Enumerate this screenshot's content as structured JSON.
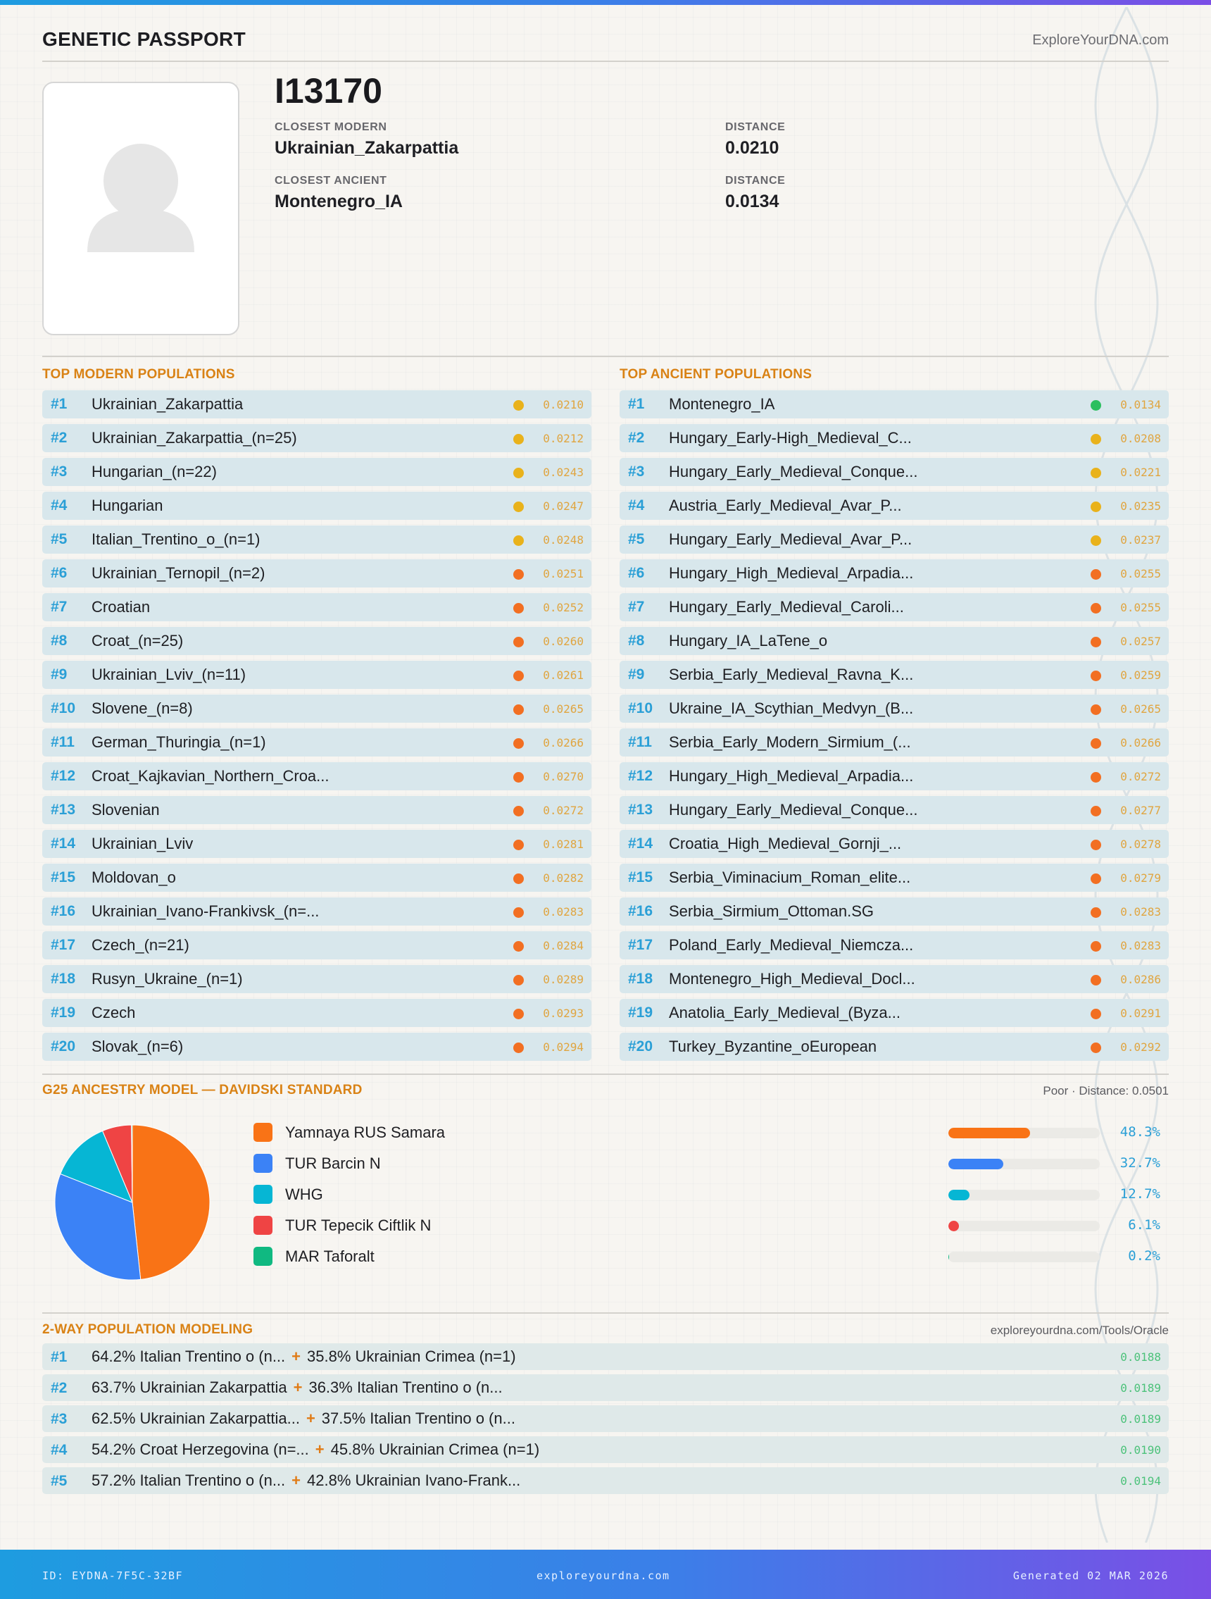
{
  "header": {
    "title": "GENETIC PASSPORT",
    "site": "ExploreYourDNA.com"
  },
  "profile": {
    "photo_icon": "avatar-placeholder-icon",
    "sample_id": "I13170",
    "closest_modern_label": "CLOSEST MODERN",
    "closest_modern": "Ukrainian_Zakarpattia",
    "modern_distance_label": "DISTANCE",
    "modern_distance": "0.0210",
    "closest_ancient_label": "CLOSEST ANCIENT",
    "closest_ancient": "Montenegro_IA",
    "ancient_distance_label": "DISTANCE",
    "ancient_distance": "0.0134"
  },
  "colors": {
    "green": "#2bbf5f",
    "yellow": "#e9b21b",
    "orange": "#f26f22"
  },
  "modern": {
    "title": "TOP MODERN POPULATIONS",
    "items": [
      {
        "rank": "#1",
        "name": "Ukrainian_Zakarpattia",
        "distance": "0.0210",
        "dot": "#e9b21b"
      },
      {
        "rank": "#2",
        "name": "Ukrainian_Zakarpattia_(n=25)",
        "distance": "0.0212",
        "dot": "#e9b21b"
      },
      {
        "rank": "#3",
        "name": "Hungarian_(n=22)",
        "distance": "0.0243",
        "dot": "#e9b21b"
      },
      {
        "rank": "#4",
        "name": "Hungarian",
        "distance": "0.0247",
        "dot": "#e9b21b"
      },
      {
        "rank": "#5",
        "name": "Italian_Trentino_o_(n=1)",
        "distance": "0.0248",
        "dot": "#e9b21b"
      },
      {
        "rank": "#6",
        "name": "Ukrainian_Ternopil_(n=2)",
        "distance": "0.0251",
        "dot": "#f26f22"
      },
      {
        "rank": "#7",
        "name": "Croatian",
        "distance": "0.0252",
        "dot": "#f26f22"
      },
      {
        "rank": "#8",
        "name": "Croat_(n=25)",
        "distance": "0.0260",
        "dot": "#f26f22"
      },
      {
        "rank": "#9",
        "name": "Ukrainian_Lviv_(n=11)",
        "distance": "0.0261",
        "dot": "#f26f22"
      },
      {
        "rank": "#10",
        "name": "Slovene_(n=8)",
        "distance": "0.0265",
        "dot": "#f26f22"
      },
      {
        "rank": "#11",
        "name": "German_Thuringia_(n=1)",
        "distance": "0.0266",
        "dot": "#f26f22"
      },
      {
        "rank": "#12",
        "name": "Croat_Kajkavian_Northern_Croa...",
        "distance": "0.0270",
        "dot": "#f26f22"
      },
      {
        "rank": "#13",
        "name": "Slovenian",
        "distance": "0.0272",
        "dot": "#f26f22"
      },
      {
        "rank": "#14",
        "name": "Ukrainian_Lviv",
        "distance": "0.0281",
        "dot": "#f26f22"
      },
      {
        "rank": "#15",
        "name": "Moldovan_o",
        "distance": "0.0282",
        "dot": "#f26f22"
      },
      {
        "rank": "#16",
        "name": "Ukrainian_Ivano-Frankivsk_(n=...",
        "distance": "0.0283",
        "dot": "#f26f22"
      },
      {
        "rank": "#17",
        "name": "Czech_(n=21)",
        "distance": "0.0284",
        "dot": "#f26f22"
      },
      {
        "rank": "#18",
        "name": "Rusyn_Ukraine_(n=1)",
        "distance": "0.0289",
        "dot": "#f26f22"
      },
      {
        "rank": "#19",
        "name": "Czech",
        "distance": "0.0293",
        "dot": "#f26f22"
      },
      {
        "rank": "#20",
        "name": "Slovak_(n=6)",
        "distance": "0.0294",
        "dot": "#f26f22"
      }
    ]
  },
  "ancient": {
    "title": "TOP ANCIENT POPULATIONS",
    "items": [
      {
        "rank": "#1",
        "name": "Montenegro_IA",
        "distance": "0.0134",
        "dot": "#2bbf5f"
      },
      {
        "rank": "#2",
        "name": "Hungary_Early-High_Medieval_C...",
        "distance": "0.0208",
        "dot": "#e9b21b"
      },
      {
        "rank": "#3",
        "name": "Hungary_Early_Medieval_Conque...",
        "distance": "0.0221",
        "dot": "#e9b21b"
      },
      {
        "rank": "#4",
        "name": "Austria_Early_Medieval_Avar_P...",
        "distance": "0.0235",
        "dot": "#e9b21b"
      },
      {
        "rank": "#5",
        "name": "Hungary_Early_Medieval_Avar_P...",
        "distance": "0.0237",
        "dot": "#e9b21b"
      },
      {
        "rank": "#6",
        "name": "Hungary_High_Medieval_Arpadia...",
        "distance": "0.0255",
        "dot": "#f26f22"
      },
      {
        "rank": "#7",
        "name": "Hungary_Early_Medieval_Caroli...",
        "distance": "0.0255",
        "dot": "#f26f22"
      },
      {
        "rank": "#8",
        "name": "Hungary_IA_LaTene_o",
        "distance": "0.0257",
        "dot": "#f26f22"
      },
      {
        "rank": "#9",
        "name": "Serbia_Early_Medieval_Ravna_K...",
        "distance": "0.0259",
        "dot": "#f26f22"
      },
      {
        "rank": "#10",
        "name": "Ukraine_IA_Scythian_Medvyn_(B...",
        "distance": "0.0265",
        "dot": "#f26f22"
      },
      {
        "rank": "#11",
        "name": "Serbia_Early_Modern_Sirmium_(...",
        "distance": "0.0266",
        "dot": "#f26f22"
      },
      {
        "rank": "#12",
        "name": "Hungary_High_Medieval_Arpadia...",
        "distance": "0.0272",
        "dot": "#f26f22"
      },
      {
        "rank": "#13",
        "name": "Hungary_Early_Medieval_Conque...",
        "distance": "0.0277",
        "dot": "#f26f22"
      },
      {
        "rank": "#14",
        "name": "Croatia_High_Medieval_Gornji_...",
        "distance": "0.0278",
        "dot": "#f26f22"
      },
      {
        "rank": "#15",
        "name": "Serbia_Viminacium_Roman_elite...",
        "distance": "0.0279",
        "dot": "#f26f22"
      },
      {
        "rank": "#16",
        "name": "Serbia_Sirmium_Ottoman.SG",
        "distance": "0.0283",
        "dot": "#f26f22"
      },
      {
        "rank": "#17",
        "name": "Poland_Early_Medieval_Niemcza...",
        "distance": "0.0283",
        "dot": "#f26f22"
      },
      {
        "rank": "#18",
        "name": "Montenegro_High_Medieval_Docl...",
        "distance": "0.0286",
        "dot": "#f26f22"
      },
      {
        "rank": "#19",
        "name": "Anatolia_Early_Medieval_(Byza...",
        "distance": "0.0291",
        "dot": "#f26f22"
      },
      {
        "rank": "#20",
        "name": "Turkey_Byzantine_oEuropean",
        "distance": "0.0292",
        "dot": "#f26f22"
      }
    ]
  },
  "ancestry": {
    "title": "G25 ANCESTRY MODEL — DAVIDSKI STANDARD",
    "fit": "Poor · Distance: 0.0501"
  },
  "chart_data": {
    "type": "pie",
    "title": "",
    "legend": "right",
    "labels": [
      "Yamnaya RUS Samara",
      "TUR Barcin N",
      "WHG",
      "TUR Tepecik Ciftlik N",
      "MAR Taforalt"
    ],
    "values": [
      48.3,
      32.7,
      12.7,
      6.1,
      0.2
    ],
    "value_labels": [
      "48.3%",
      "32.7%",
      "12.7%",
      "6.1%",
      "0.2%"
    ],
    "colors": [
      "#f97316",
      "#3b82f6",
      "#06b6d4",
      "#ef4444",
      "#10b981"
    ]
  },
  "twoway": {
    "title": "2-WAY POPULATION MODELING",
    "link": "exploreyourdna.com/Tools/Oracle",
    "plus": "+",
    "items": [
      {
        "rank": "#1",
        "a": "64.2% Italian Trentino o (n...",
        "b": "35.8% Ukrainian Crimea (n=1)",
        "distance": "0.0188"
      },
      {
        "rank": "#2",
        "a": "63.7% Ukrainian Zakarpattia",
        "b": "36.3% Italian Trentino o (n...",
        "distance": "0.0189"
      },
      {
        "rank": "#3",
        "a": "62.5% Ukrainian Zakarpattia...",
        "b": "37.5% Italian Trentino o (n...",
        "distance": "0.0189"
      },
      {
        "rank": "#4",
        "a": "54.2% Croat Herzegovina (n=...",
        "b": "45.8% Ukrainian Crimea (n=1)",
        "distance": "0.0190"
      },
      {
        "rank": "#5",
        "a": "57.2% Italian Trentino o (n...",
        "b": "42.8% Ukrainian Ivano-Frank...",
        "distance": "0.0194"
      }
    ]
  },
  "footer": {
    "id": "ID: EYDNA-7F5C-32BF",
    "site": "exploreyourdna.com",
    "generated": "Generated 02 MAR 2026"
  }
}
